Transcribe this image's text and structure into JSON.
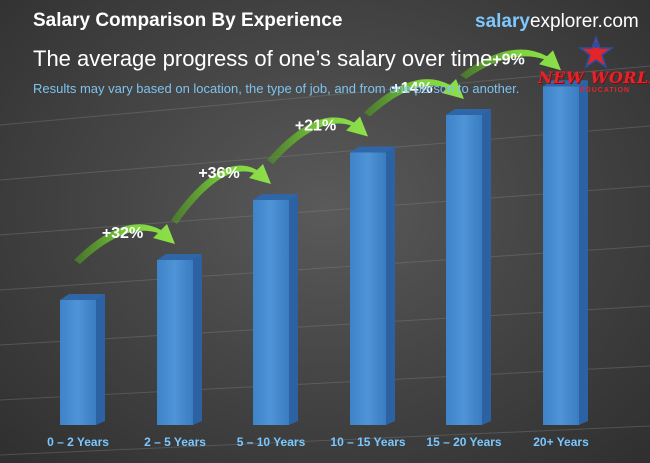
{
  "header": {
    "title": "Salary Comparison By Experience",
    "subtitle": "The average progress of one’s salary over time.",
    "note": "Results may vary based on location, the type of job, and from one person to another."
  },
  "brand": {
    "part1": "salary",
    "part2": "explorer.com"
  },
  "logo": {
    "line1": "NEW WORLD",
    "line2": "EDUCATION",
    "icon": "star-person-icon"
  },
  "colors": {
    "bar_front": "#4e94d6",
    "bar_top": "#2f66a8",
    "arrow": "#7dd33b",
    "label": "#79c8ff"
  },
  "chart_data": {
    "type": "bar",
    "title": "Salary Comparison By Experience",
    "categories": [
      "0 – 2 Years",
      "2 – 5 Years",
      "5 – 10 Years",
      "10 – 15 Years",
      "15 – 20 Years",
      "20+ Years"
    ],
    "values": [
      1.0,
      1.32,
      1.8,
      2.18,
      2.48,
      2.71
    ],
    "increases": [
      "+32%",
      "+36%",
      "+21%",
      "+14%",
      "+9%"
    ],
    "ylim": [
      0,
      3.0
    ],
    "grid": true,
    "legend": "none"
  }
}
